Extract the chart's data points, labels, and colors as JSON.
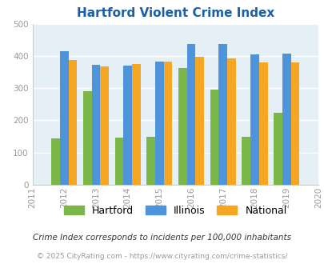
{
  "title": "Hartford Violent Crime Index",
  "years": [
    2012,
    2013,
    2014,
    2015,
    2016,
    2017,
    2018,
    2019
  ],
  "hartford": [
    145,
    290,
    147,
    148,
    362,
    295,
    150,
    224
  ],
  "illinois": [
    416,
    372,
    369,
    383,
    437,
    437,
    405,
    408
  ],
  "national": [
    387,
    367,
    376,
    383,
    397,
    393,
    379,
    379
  ],
  "colors": {
    "hartford": "#7ab648",
    "illinois": "#4d94db",
    "national": "#f5a623"
  },
  "bg_color": "#e4f0f5",
  "ylim": [
    0,
    500
  ],
  "yticks": [
    0,
    100,
    200,
    300,
    400,
    500
  ],
  "xlim": [
    2011,
    2020
  ],
  "tick_color": "#999999",
  "title_color": "#1a5fa8",
  "legend_labels": [
    "Hartford",
    "Illinois",
    "National"
  ],
  "footnote1": "Crime Index corresponds to incidents per 100,000 inhabitants",
  "footnote2": "© 2025 CityRating.com - https://www.cityrating.com/crime-statistics/",
  "bar_width": 0.27
}
